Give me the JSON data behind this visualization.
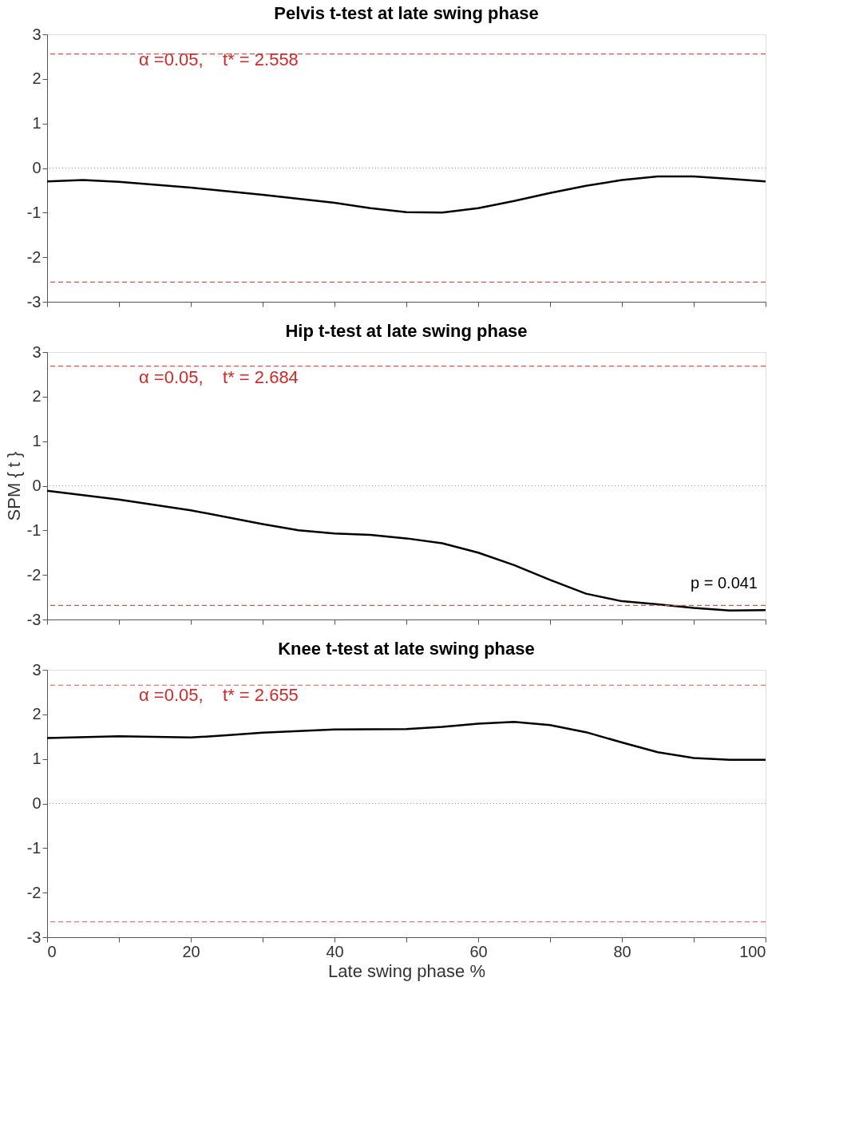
{
  "chart_data": [
    {
      "type": "line",
      "title": "Pelvis t-test at late swing phase",
      "tick_labels": "y",
      "grid": false,
      "xlim": [
        0,
        100
      ],
      "ylim": [
        -3,
        3
      ],
      "xticks": [
        0,
        {
          "value": 10,
          "label": null
        },
        {
          "value": 20,
          "label": null
        },
        {
          "value": 30,
          "label": null
        },
        {
          "value": 40,
          "label": null
        },
        {
          "value": 50,
          "label": null
        },
        {
          "value": 60,
          "label": null
        },
        {
          "value": 70,
          "label": null
        },
        {
          "value": 80,
          "label": null
        },
        {
          "value": 90,
          "label": null
        },
        {
          "value": 100,
          "label": null
        }
      ],
      "yticks": [
        -3,
        -2,
        -1,
        0,
        1,
        2,
        3
      ],
      "x": [
        0,
        5,
        10,
        20,
        30,
        40,
        45,
        50,
        55,
        60,
        65,
        70,
        75,
        80,
        85,
        90,
        95,
        100
      ],
      "series": [
        {
          "color": "#000000",
          "line_style": "solid",
          "values": [
            -0.3,
            -0.27,
            -0.31,
            -0.44,
            -0.6,
            -0.78,
            -0.9,
            -0.99,
            -1.0,
            -0.9,
            -0.74,
            -0.56,
            -0.4,
            -0.27,
            -0.19,
            -0.19,
            -0.24,
            -0.3
          ]
        }
      ],
      "ref_lines": [
        {
          "axis": "y",
          "value": 2.558,
          "color": "#d9534f",
          "line_style": "dashed"
        },
        {
          "axis": "y",
          "value": -2.558,
          "color": "#d9534f",
          "line_style": "dashed"
        },
        {
          "axis": "y",
          "value": 0,
          "color": "#999999",
          "line_style": "dotted"
        }
      ],
      "annotations": [
        "α =0.05,    t* = 2.558"
      ]
    },
    {
      "type": "line",
      "title": "Hip t-test at late swing phase",
      "ylabel": "SPM { t }",
      "tick_labels": "y",
      "grid": false,
      "xlim": [
        0,
        100
      ],
      "ylim": [
        -3,
        3
      ],
      "xticks": [
        0,
        {
          "value": 10,
          "label": null
        },
        {
          "value": 20,
          "label": null
        },
        {
          "value": 30,
          "label": null
        },
        {
          "value": 40,
          "label": null
        },
        {
          "value": 50,
          "label": null
        },
        {
          "value": 60,
          "label": null
        },
        {
          "value": 70,
          "label": null
        },
        {
          "value": 80,
          "label": null
        },
        {
          "value": 90,
          "label": null
        },
        {
          "value": 100,
          "label": null
        }
      ],
      "yticks": [
        -3,
        -2,
        -1,
        0,
        1,
        2,
        3
      ],
      "x": [
        0,
        10,
        20,
        30,
        35,
        40,
        45,
        50,
        55,
        60,
        65,
        70,
        75,
        80,
        85,
        90,
        95,
        100
      ],
      "series": [
        {
          "color": "#000000",
          "line_style": "solid",
          "values": [
            -0.11,
            -0.31,
            -0.55,
            -0.86,
            -1.0,
            -1.07,
            -1.1,
            -1.18,
            -1.29,
            -1.5,
            -1.78,
            -2.11,
            -2.42,
            -2.59,
            -2.66,
            -2.74,
            -2.8,
            -2.79
          ]
        }
      ],
      "ref_lines": [
        {
          "axis": "y",
          "value": 2.684,
          "color": "#d9534f",
          "line_style": "dashed"
        },
        {
          "axis": "y",
          "value": -2.684,
          "color": "#d9534f",
          "line_style": "dashed"
        },
        {
          "axis": "y",
          "value": 0,
          "color": "#999999",
          "line_style": "dotted"
        }
      ],
      "annotations": [
        "α =0.05,    t* = 2.684",
        "p = 0.041"
      ]
    },
    {
      "type": "line",
      "title": "Knee t-test at late swing phase",
      "xlabel": "Late swing phase %",
      "grid": false,
      "xlim": [
        0,
        100
      ],
      "ylim": [
        -3,
        3
      ],
      "xticks": [
        0,
        {
          "value": 10,
          "label": null
        },
        20,
        {
          "value": 30,
          "label": null
        },
        40,
        {
          "value": 50,
          "label": null
        },
        60,
        {
          "value": 70,
          "label": null
        },
        80,
        {
          "value": 90,
          "label": null
        },
        100
      ],
      "yticks": [
        -3,
        -2,
        -1,
        0,
        1,
        2,
        3
      ],
      "x": [
        0,
        10,
        20,
        25,
        30,
        40,
        50,
        55,
        60,
        65,
        70,
        75,
        80,
        85,
        90,
        95,
        100
      ],
      "series": [
        {
          "color": "#000000",
          "line_style": "solid",
          "values": [
            1.47,
            1.51,
            1.48,
            1.53,
            1.59,
            1.66,
            1.67,
            1.72,
            1.79,
            1.83,
            1.76,
            1.6,
            1.37,
            1.15,
            1.02,
            0.98,
            0.98
          ]
        }
      ],
      "ref_lines": [
        {
          "axis": "y",
          "value": 2.655,
          "color": "#d9534f",
          "line_style": "dashed"
        },
        {
          "axis": "y",
          "value": -2.655,
          "color": "#d9534f",
          "line_style": "dashed"
        },
        {
          "axis": "y",
          "value": 0,
          "color": "#999999",
          "line_style": "dotted"
        }
      ],
      "annotations": [
        "α =0.05,    t* = 2.655"
      ]
    }
  ]
}
